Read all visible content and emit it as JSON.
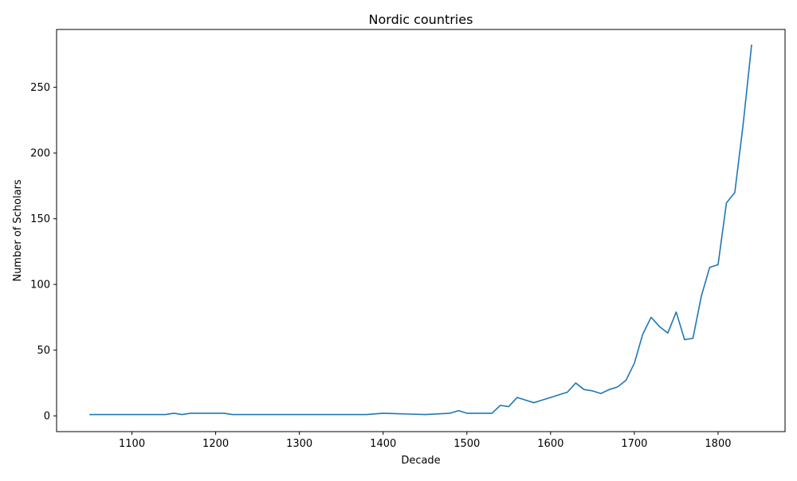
{
  "chart_data": {
    "type": "line",
    "title": "Nordic countries",
    "xlabel": "Decade",
    "ylabel": "Number of Scholars",
    "xlim": [
      1010,
      1880
    ],
    "ylim": [
      -12,
      294
    ],
    "xticks": [
      1100,
      1200,
      1300,
      1400,
      1500,
      1600,
      1700,
      1800
    ],
    "yticks": [
      0,
      50,
      100,
      150,
      200,
      250
    ],
    "grid": false,
    "legend": "none",
    "line_color": "#1f77b4",
    "series": [
      {
        "x": [
          1050,
          1060,
          1070,
          1080,
          1090,
          1100,
          1110,
          1120,
          1130,
          1140,
          1150,
          1160,
          1170,
          1180,
          1190,
          1200,
          1210,
          1220,
          1230,
          1240,
          1250,
          1260,
          1270,
          1280,
          1290,
          1300,
          1310,
          1320,
          1330,
          1340,
          1350,
          1360,
          1370,
          1380,
          1400,
          1450,
          1480,
          1490,
          1500,
          1510,
          1520,
          1530,
          1540,
          1550,
          1560,
          1570,
          1580,
          1590,
          1600,
          1610,
          1620,
          1630,
          1640,
          1650,
          1660,
          1670,
          1680,
          1690,
          1700,
          1710,
          1720,
          1730,
          1740,
          1750,
          1760,
          1770,
          1780,
          1790,
          1800,
          1810,
          1820,
          1830,
          1840
        ],
        "values": [
          1,
          1,
          1,
          1,
          1,
          1,
          1,
          1,
          1,
          1,
          2,
          1,
          2,
          2,
          2,
          2,
          2,
          1,
          1,
          1,
          1,
          1,
          1,
          1,
          1,
          1,
          1,
          1,
          1,
          1,
          1,
          1,
          1,
          1,
          2,
          1,
          2,
          4,
          2,
          2,
          2,
          2,
          8,
          7,
          14,
          12,
          10,
          12,
          14,
          16,
          18,
          25,
          20,
          19,
          17,
          20,
          22,
          27,
          40,
          62,
          75,
          68,
          63,
          79,
          58,
          59,
          91,
          113,
          115,
          162,
          170,
          222,
          282
        ]
      }
    ]
  }
}
